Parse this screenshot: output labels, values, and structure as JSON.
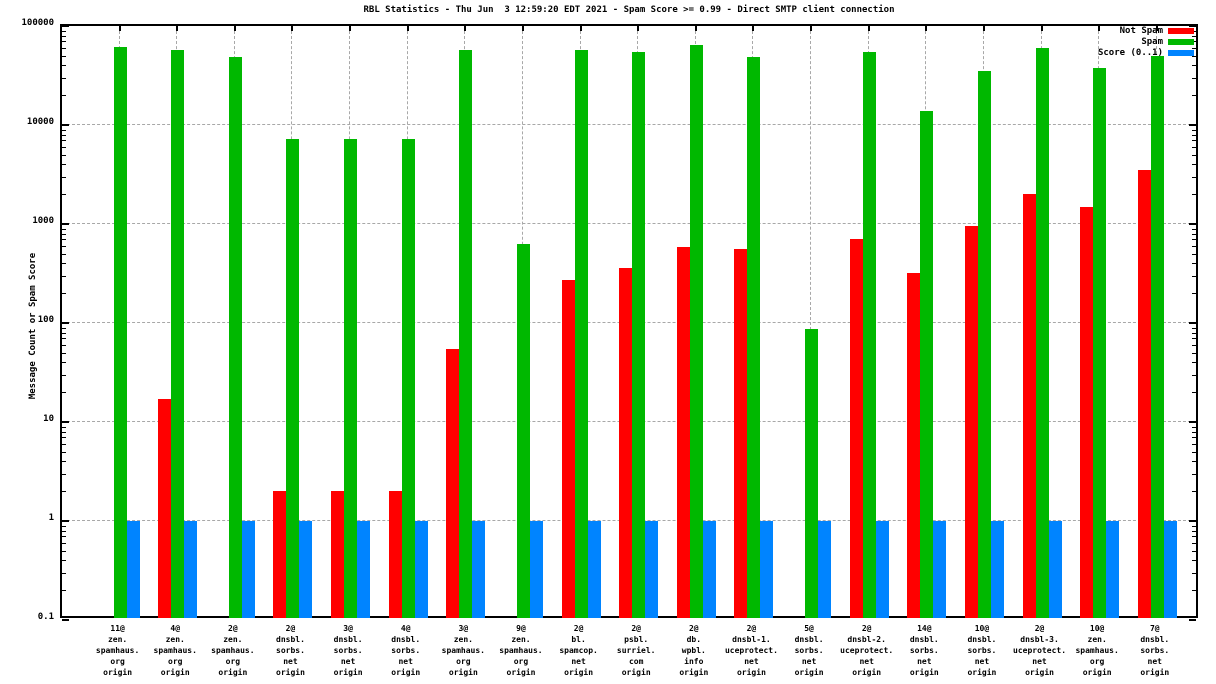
{
  "chart_data": {
    "type": "bar",
    "title": "RBL Statistics - Thu Jun  3 12:59:20 EDT 2021 - Spam Score >= 0.99 - Direct SMTP client connection",
    "xlabel": "",
    "ylabel": "Message Count or Spam Score",
    "yscale": "log",
    "ylim": [
      0.1,
      100000
    ],
    "grid": true,
    "legend_position": "top-right",
    "ytick_labels": [
      "100000",
      "10000",
      "1000",
      "100",
      "10",
      "1",
      "0.1"
    ],
    "categories": [
      "11@zen.spamhaus.org origin",
      "4@zen.spamhaus.org origin",
      "2@zen.spamhaus.org origin",
      "2@dnsbl.sorbs.net origin",
      "3@dnsbl.sorbs.net origin",
      "4@dnsbl.sorbs.net origin",
      "3@zen.spamhaus.org origin",
      "9@zen.spamhaus.org origin",
      "2@bl.spamcop.net origin",
      "2@psbl.surriel.com origin",
      "2@db.wpbl.info origin",
      "2@dnsbl-1.uceprotect.net origin",
      "5@dnsbl.sorbs.net origin",
      "2@dnsbl-2.uceprotect.net origin",
      "14@dnsbl.sorbs.net origin",
      "10@dnsbl.sorbs.net origin",
      "2@dnsbl-3.uceprotect.net origin",
      "10@zen.spamhaus.org origin",
      "7@dnsbl.sorbs.net origin"
    ],
    "category_lines": [
      [
        "11@",
        "zen.",
        "spamhaus.",
        "org",
        "origin"
      ],
      [
        "4@",
        "zen.",
        "spamhaus.",
        "org",
        "origin"
      ],
      [
        "2@",
        "zen.",
        "spamhaus.",
        "org",
        "origin"
      ],
      [
        "2@",
        "dnsbl.",
        "sorbs.",
        "net",
        "origin"
      ],
      [
        "3@",
        "dnsbl.",
        "sorbs.",
        "net",
        "origin"
      ],
      [
        "4@",
        "dnsbl.",
        "sorbs.",
        "net",
        "origin"
      ],
      [
        "3@",
        "zen.",
        "spamhaus.",
        "org",
        "origin"
      ],
      [
        "9@",
        "zen.",
        "spamhaus.",
        "org",
        "origin"
      ],
      [
        "2@",
        "bl.",
        "spamcop.",
        "net",
        "origin"
      ],
      [
        "2@",
        "psbl.",
        "surriel.",
        "com",
        "origin"
      ],
      [
        "2@",
        "db.",
        "wpbl.",
        "info",
        "origin"
      ],
      [
        "2@",
        "dnsbl-1.",
        "uceprotect.",
        "net",
        "origin"
      ],
      [
        "5@",
        "dnsbl.",
        "sorbs.",
        "net",
        "origin"
      ],
      [
        "2@",
        "dnsbl-2.",
        "uceprotect.",
        "net",
        "origin"
      ],
      [
        "14@",
        "dnsbl.",
        "sorbs.",
        "net",
        "origin"
      ],
      [
        "10@",
        "dnsbl.",
        "sorbs.",
        "net",
        "origin"
      ],
      [
        "2@",
        "dnsbl-3.",
        "uceprotect.",
        "net",
        "origin"
      ],
      [
        "10@",
        "zen.",
        "spamhaus.",
        "org",
        "origin"
      ],
      [
        "7@",
        "dnsbl.",
        "sorbs.",
        "net",
        "origin"
      ]
    ],
    "series": [
      {
        "name": "Not Spam",
        "color": "#ff0000",
        "values": [
          null,
          17,
          null,
          2,
          2,
          2,
          55,
          null,
          275,
          360,
          590,
          560,
          null,
          700,
          320,
          950,
          2000,
          1500,
          3550
        ]
      },
      {
        "name": "Spam",
        "color": "#00b800",
        "values": [
          62000,
          57000,
          49000,
          7300,
          7300,
          7300,
          57000,
          630,
          57000,
          55000,
          64000,
          49000,
          87,
          54000,
          14000,
          35000,
          60000,
          38000,
          50000
        ]
      },
      {
        "name": "Score (0..1)",
        "color": "#0084ff",
        "values": [
          1,
          1,
          1,
          1,
          1,
          1,
          1,
          1,
          1,
          1,
          1,
          1,
          1,
          1,
          1,
          1,
          1,
          1,
          1
        ]
      }
    ],
    "colors": {
      "grid": "#a8a8a8",
      "border": "#000000",
      "background": "#ffffff"
    }
  }
}
